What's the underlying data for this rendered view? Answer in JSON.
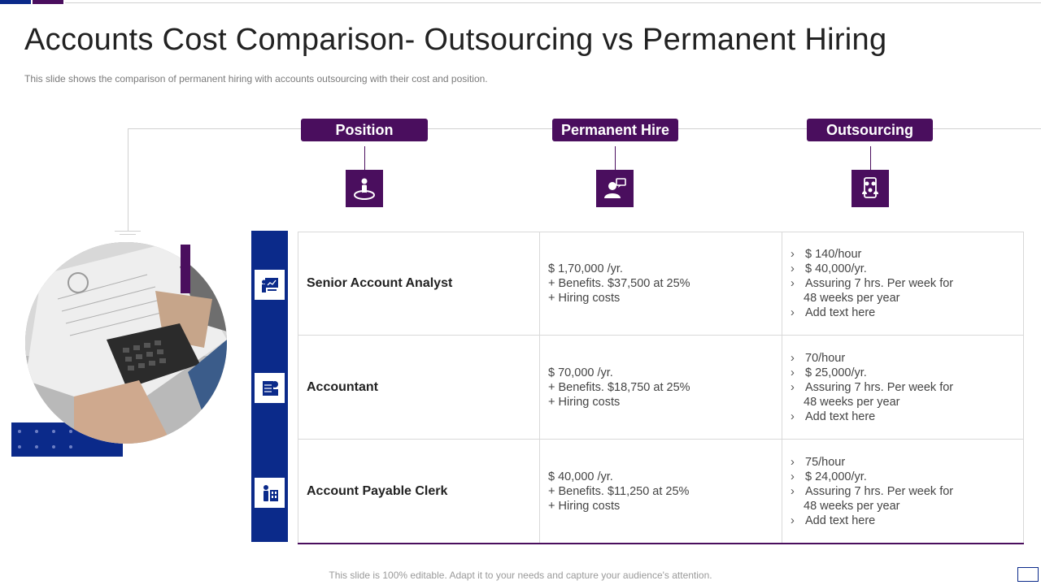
{
  "header": {
    "title": "Accounts Cost Comparison- Outsourcing vs Permanent Hiring",
    "subtitle": "This slide shows the comparison of permanent hiring with accounts outsourcing with their cost and position."
  },
  "columns": [
    {
      "label": "Position",
      "icon": "person-target-icon"
    },
    {
      "label": "Permanent Hire",
      "icon": "user-chat-icon"
    },
    {
      "label": "Outsourcing",
      "icon": "team-document-icon"
    }
  ],
  "rows": [
    {
      "position": "Senior Account Analyst",
      "icon": "presentation-board-icon",
      "permanent": [
        "$ 1,70,000 /yr.",
        "+ Benefits. $37,500 at 25%",
        "+ Hiring costs"
      ],
      "outsourcing": [
        "$ 140/hour",
        "$ 40,000/yr.",
        "Assuring 7 hrs. Per week for",
        "48 weeks per year",
        "Add text here"
      ]
    },
    {
      "position": "Accountant",
      "icon": "accounting-ledger-icon",
      "permanent": [
        "$ 70,000 /yr.",
        "+ Benefits. $18,750 at 25%",
        "+ Hiring costs"
      ],
      "outsourcing": [
        "70/hour",
        "$ 25,000/yr.",
        "Assuring 7 hrs. Per week for",
        "48 weeks per year",
        "Add text here"
      ]
    },
    {
      "position": "Account Payable Clerk",
      "icon": "clerk-filing-icon",
      "permanent": [
        "$ 40,000 /yr.",
        "+ Benefits. $11,250 at 25%",
        "+ Hiring costs"
      ],
      "outsourcing": [
        "75/hour",
        "$ 24,000/yr.",
        "Assuring 7 hrs. Per week for",
        "48 weeks per year",
        "Add text here"
      ]
    }
  ],
  "footer": "This slide is 100% editable. Adapt it to your needs and capture your audience's attention.",
  "colors": {
    "purple": "#4a0e5e",
    "blue": "#0b2a8a"
  }
}
